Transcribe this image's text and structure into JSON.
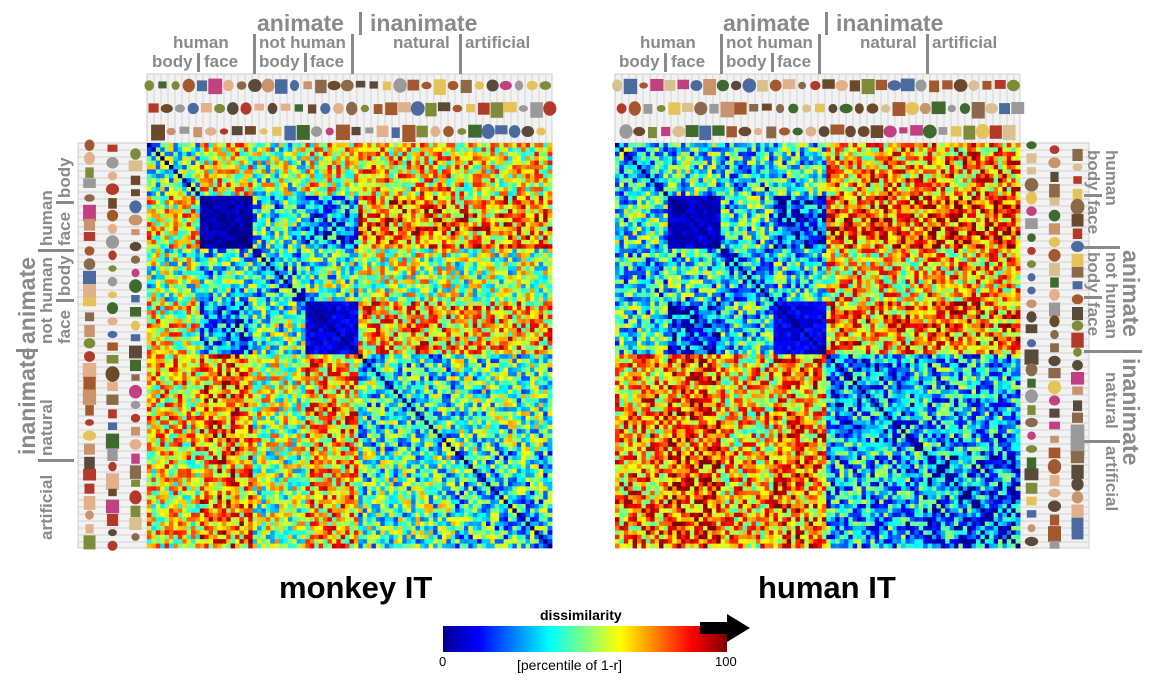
{
  "panels": [
    {
      "id": "monkey",
      "title": "monkey IT"
    },
    {
      "id": "human",
      "title": "human IT"
    }
  ],
  "category_labels": {
    "animate": "animate",
    "inanimate": "inanimate",
    "human": "human",
    "not_human": "not human",
    "body": "body",
    "face": "face",
    "natural": "natural",
    "artificial": "artificial"
  },
  "colorbar": {
    "title": "dissimilarity",
    "min_label": "0",
    "max_label": "100",
    "unit": "[percentile of 1-r]"
  },
  "chart_data": [
    {
      "type": "heatmap",
      "title": "monkey IT",
      "n_stimuli": 92,
      "groups": [
        {
          "name": "human body",
          "range": [
            0,
            12
          ]
        },
        {
          "name": "human face",
          "range": [
            12,
            24
          ]
        },
        {
          "name": "not human body",
          "range": [
            24,
            36
          ]
        },
        {
          "name": "not human face",
          "range": [
            36,
            48
          ]
        },
        {
          "name": "inanimate natural",
          "range": [
            48,
            70
          ]
        },
        {
          "name": "inanimate artificial",
          "range": [
            70,
            92
          ]
        }
      ],
      "block_dissimilarity_percentile": [
        [
          45,
          60,
          50,
          60,
          65,
          62
        ],
        [
          60,
          5,
          40,
          25,
          75,
          72
        ],
        [
          50,
          40,
          35,
          45,
          55,
          52
        ],
        [
          60,
          25,
          45,
          10,
          70,
          68
        ],
        [
          65,
          75,
          55,
          70,
          40,
          45
        ],
        [
          62,
          72,
          52,
          68,
          45,
          38
        ]
      ],
      "colorbar_range": [
        0,
        100
      ]
    },
    {
      "type": "heatmap",
      "title": "human IT",
      "n_stimuli": 92,
      "groups": [
        {
          "name": "human body",
          "range": [
            0,
            12
          ]
        },
        {
          "name": "human face",
          "range": [
            12,
            24
          ]
        },
        {
          "name": "not human body",
          "range": [
            24,
            36
          ]
        },
        {
          "name": "not human face",
          "range": [
            36,
            48
          ]
        },
        {
          "name": "inanimate natural",
          "range": [
            48,
            70
          ]
        },
        {
          "name": "inanimate artificial",
          "range": [
            70,
            92
          ]
        }
      ],
      "block_dissimilarity_percentile": [
        [
          35,
          40,
          35,
          40,
          70,
          72
        ],
        [
          40,
          8,
          38,
          18,
          78,
          80
        ],
        [
          35,
          38,
          30,
          38,
          65,
          68
        ],
        [
          40,
          18,
          38,
          10,
          72,
          75
        ],
        [
          70,
          78,
          65,
          72,
          28,
          32
        ],
        [
          72,
          80,
          68,
          75,
          32,
          25
        ]
      ],
      "colorbar_range": [
        0,
        100
      ]
    }
  ]
}
